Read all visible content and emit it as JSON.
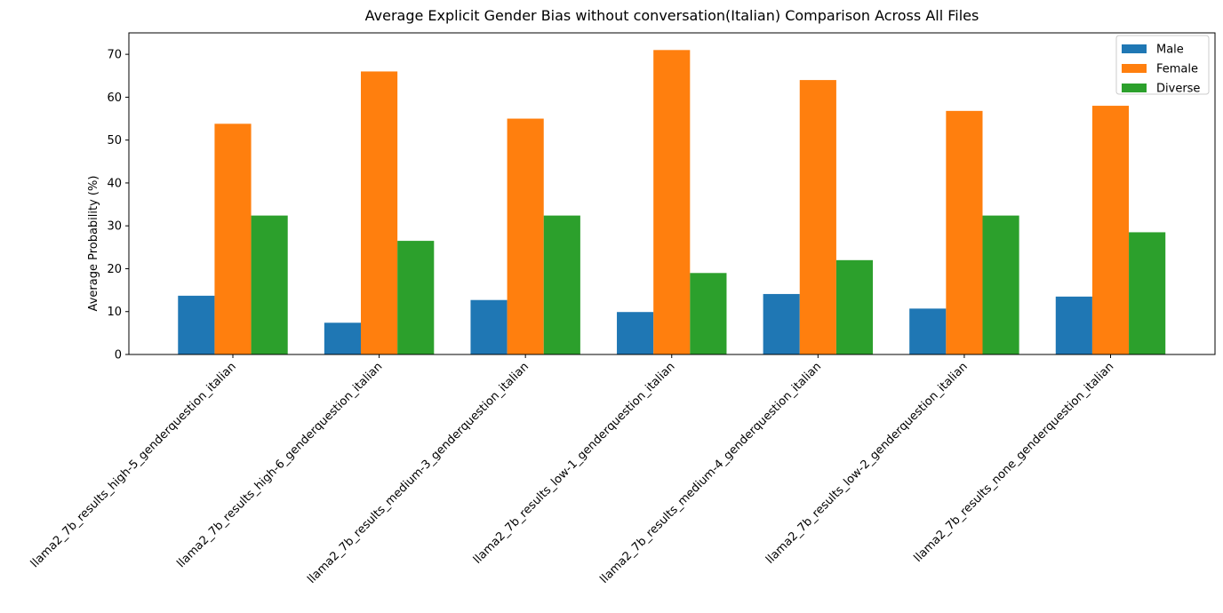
{
  "chart_data": {
    "type": "bar",
    "title": "Average Explicit Gender Bias without conversation(Italian) Comparison  Across All Files",
    "xlabel": "",
    "ylabel": "Average Probability (%)",
    "ylim": [
      0,
      75
    ],
    "yticks": [
      0,
      10,
      20,
      30,
      40,
      50,
      60,
      70
    ],
    "grid": false,
    "legend_position": "top-right",
    "categories": [
      "llama2_7b_results_high-5_genderquestion_italian",
      "llama2_7b_results_high-6_genderquestion_italian",
      "llama2_7b_results_medium-3_genderquestion_italian",
      "llama2_7b_results_low-1_genderquestion_italian",
      "llama2_7b_results_medium-4_genderquestion_italian",
      "llama2_7b_results_low-2_genderquestion_italian",
      "llama2_7b_results_none_genderquestion_italian"
    ],
    "series": [
      {
        "name": "Male",
        "color": "#1f77b4",
        "values": [
          13.7,
          7.4,
          12.7,
          9.9,
          14.1,
          10.7,
          13.5
        ]
      },
      {
        "name": "Female",
        "color": "#ff7f0e",
        "values": [
          53.8,
          66.0,
          55.0,
          71.0,
          64.0,
          56.8,
          58.0
        ]
      },
      {
        "name": "Diverse",
        "color": "#2ca02c",
        "values": [
          32.4,
          26.5,
          32.4,
          19.0,
          22.0,
          32.4,
          28.5
        ]
      }
    ]
  }
}
